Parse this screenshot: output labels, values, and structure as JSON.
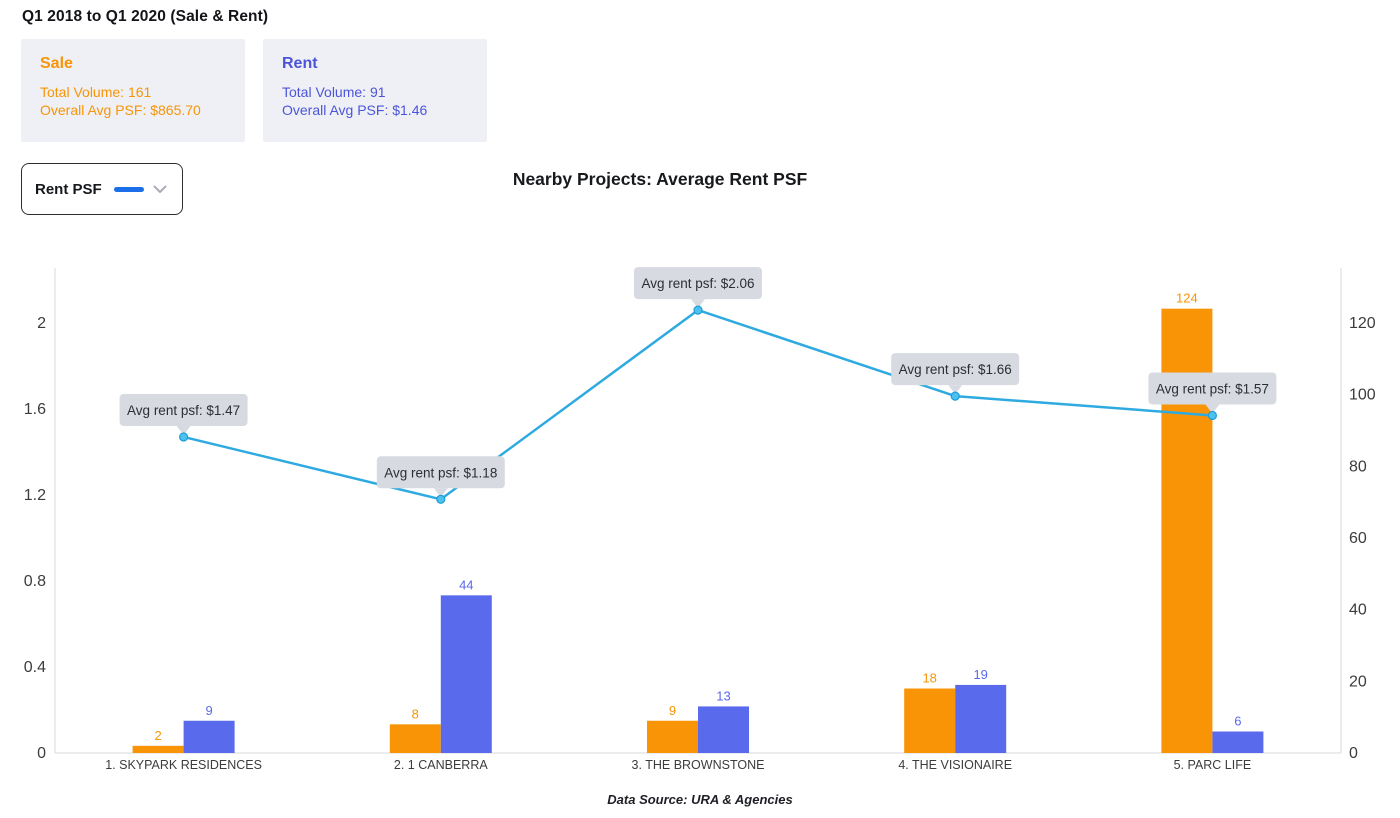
{
  "header": {
    "title": "Q1 2018 to Q1 2020 (Sale & Rent)"
  },
  "summary_cards": {
    "sale": {
      "title": "Sale",
      "line1": "Total Volume: 161",
      "line2": "Overall Avg PSF: $865.70",
      "color": "#F89406"
    },
    "rent": {
      "title": "Rent",
      "line1": "Total Volume: 91",
      "line2": "Overall Avg PSF: $1.46",
      "color": "#4C55D9"
    }
  },
  "controls": {
    "metric_dropdown": {
      "label": "Rent PSF",
      "swatch_color": "#1C6FE9",
      "chevron_icon": "chevron-down"
    }
  },
  "chart_data": {
    "type": "bar",
    "title": "Nearby Projects: Average Rent PSF",
    "categories": [
      "1. SKYPARK RESIDENCES",
      "2. 1 CANBERRA",
      "3. THE BROWNSTONE",
      "4. THE VISIONAIRE",
      "5. PARC LIFE"
    ],
    "series": [
      {
        "name": "Sale Volume",
        "render": "bar",
        "axis": "right",
        "color": "#F89406",
        "values": [
          2,
          8,
          9,
          18,
          124
        ]
      },
      {
        "name": "Rent Volume",
        "render": "bar",
        "axis": "right",
        "color": "#5A6AEC",
        "values": [
          9,
          44,
          13,
          19,
          6
        ]
      },
      {
        "name": "Rent PSF",
        "render": "line",
        "axis": "left",
        "color": "#2FAAE1",
        "values": [
          1.47,
          1.18,
          2.06,
          1.66,
          1.57
        ]
      }
    ],
    "point_tooltips": [
      "Avg rent psf: $1.47",
      "Avg rent psf: $1.18",
      "Avg rent psf: $2.06",
      "Avg rent psf: $1.66",
      "Avg rent psf: $1.57"
    ],
    "left_axis": {
      "min": 0,
      "max": 2,
      "ticks": [
        0,
        0.4,
        0.8,
        1.2,
        1.6,
        2
      ]
    },
    "right_axis": {
      "min": 0,
      "max": 120,
      "ticks": [
        0,
        20,
        40,
        60,
        80,
        100,
        120
      ]
    },
    "grid": false,
    "legend_position": "none",
    "styles": {
      "tooltip_bg": "#D8DAE2",
      "tooltip_text": "#2B2E36",
      "axis_line": "#D9D9D9",
      "tick_text": "#3C3C3C",
      "point_fill": "#4CC0EF",
      "point_stroke": "#1E9CD7"
    }
  },
  "footer": {
    "source_note": "Data Source: URA & Agencies"
  }
}
